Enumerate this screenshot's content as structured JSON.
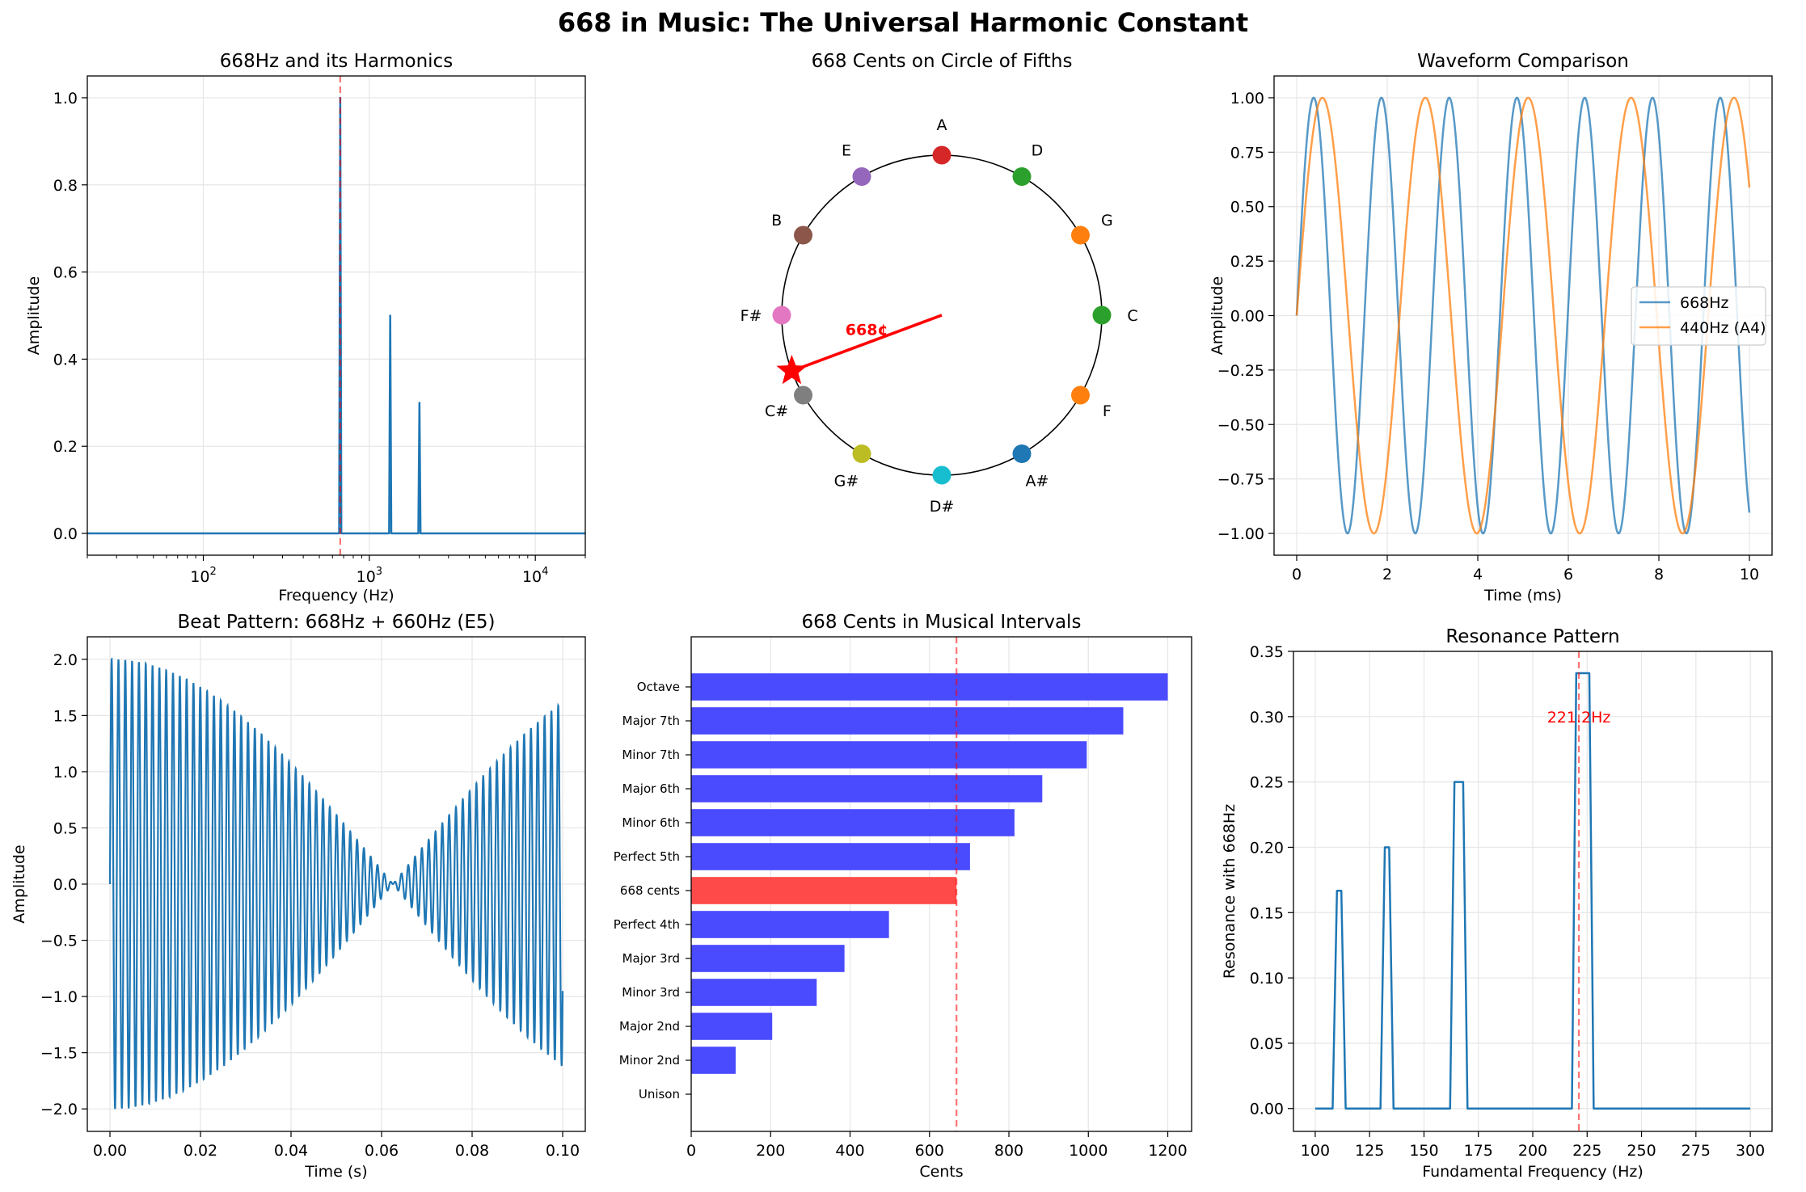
{
  "figure": {
    "suptitle": "668 in Music: The Universal Harmonic Constant"
  },
  "chart_data": [
    {
      "id": "harmonics",
      "type": "line",
      "title": "668Hz and its Harmonics",
      "xlabel": "Frequency (Hz)",
      "ylabel": "Amplitude",
      "xscale": "log",
      "xlim": [
        20,
        20000
      ],
      "ylim": [
        -0.05,
        1.05
      ],
      "xticks": [
        {
          "v": 100,
          "base": "10",
          "exp": "2"
        },
        {
          "v": 1000,
          "base": "10",
          "exp": "3"
        },
        {
          "v": 10000,
          "base": "10",
          "exp": "4"
        }
      ],
      "yticks": [
        0.0,
        0.2,
        0.4,
        0.6,
        0.8,
        1.0
      ],
      "ytick_labels": [
        "0.0",
        "0.2",
        "0.4",
        "0.6",
        "0.8",
        "1.0"
      ],
      "peaks": [
        {
          "freq": 668,
          "amp": 1.0
        },
        {
          "freq": 1336,
          "amp": 0.5
        },
        {
          "freq": 2004,
          "amp": 0.3
        }
      ],
      "vline": 668,
      "grid": true
    },
    {
      "id": "circle",
      "type": "polar-diagram",
      "title": "668 Cents on Circle of Fifths",
      "notes": [
        {
          "name": "C",
          "angle_deg": 0,
          "color": "#2ca02c"
        },
        {
          "name": "G",
          "angle_deg": 30,
          "color": "#ff7f0e"
        },
        {
          "name": "D",
          "angle_deg": 60,
          "color": "#2ca02c"
        },
        {
          "name": "A",
          "angle_deg": 90,
          "color": "#d62728"
        },
        {
          "name": "E",
          "angle_deg": 120,
          "color": "#9467bd"
        },
        {
          "name": "B",
          "angle_deg": 150,
          "color": "#8c564b"
        },
        {
          "name": "F#",
          "angle_deg": 180,
          "color": "#e377c2"
        },
        {
          "name": "C#",
          "angle_deg": 210,
          "color": "#7f7f7f"
        },
        {
          "name": "G#",
          "angle_deg": 240,
          "color": "#bcbd22"
        },
        {
          "name": "D#",
          "angle_deg": 270,
          "color": "#17becf"
        },
        {
          "name": "A#",
          "angle_deg": 300,
          "color": "#1f77b4"
        },
        {
          "name": "F",
          "angle_deg": 330,
          "color": "#ff7f0e"
        }
      ],
      "pointer_angle_deg": 200.4,
      "pointer_label": "668¢",
      "pointer_color": "#ff0000"
    },
    {
      "id": "waveform",
      "type": "line",
      "title": "Waveform Comparison",
      "xlabel": "Time (ms)",
      "ylabel": "Amplitude",
      "xlim": [
        -0.5,
        10.5
      ],
      "ylim": [
        -1.1,
        1.1
      ],
      "xticks": [
        0,
        2,
        4,
        6,
        8,
        10
      ],
      "yticks": [
        -1.0,
        -0.75,
        -0.5,
        -0.25,
        0.0,
        0.25,
        0.5,
        0.75,
        1.0
      ],
      "ytick_labels": [
        "−1.00",
        "−0.75",
        "−0.50",
        "−0.25",
        "0.00",
        "0.25",
        "0.50",
        "0.75",
        "1.00"
      ],
      "series": [
        {
          "name": "668Hz",
          "freq_hz": 668,
          "color": "#1f77b4"
        },
        {
          "name": "440Hz (A4)",
          "freq_hz": 440,
          "color": "#ff7f0e"
        }
      ],
      "x_range": [
        0,
        10
      ],
      "legend": "center-right",
      "grid": true
    },
    {
      "id": "beat",
      "type": "line",
      "title": "Beat Pattern: 668Hz + 660Hz (E5)",
      "xlabel": "Time (s)",
      "ylabel": "Amplitude",
      "xlim": [
        -0.005,
        0.105
      ],
      "ylim": [
        -2.2,
        2.2
      ],
      "xticks": [
        0.0,
        0.02,
        0.04,
        0.06,
        0.08,
        0.1
      ],
      "xtick_labels": [
        "0.00",
        "0.02",
        "0.04",
        "0.06",
        "0.08",
        "0.10"
      ],
      "yticks": [
        -2.0,
        -1.5,
        -1.0,
        -0.5,
        0.0,
        0.5,
        1.0,
        1.5,
        2.0
      ],
      "ytick_labels": [
        "−2.0",
        "−1.5",
        "−1.0",
        "−0.5",
        "0.0",
        "0.5",
        "1.0",
        "1.5",
        "2.0"
      ],
      "series": [
        {
          "freqs_hz": [
            668,
            660
          ]
        }
      ],
      "x_range": [
        0,
        0.1
      ],
      "grid": true
    },
    {
      "id": "intervals",
      "type": "bar",
      "orientation": "horizontal",
      "title": "668 Cents in Musical Intervals",
      "xlabel": "Cents",
      "xlim": [
        0,
        1260
      ],
      "xticks": [
        0,
        200,
        400,
        600,
        800,
        1000,
        1200
      ],
      "categories": [
        "Unison",
        "Minor 2nd",
        "Major 2nd",
        "Minor 3rd",
        "Major 3rd",
        "Perfect 4th",
        "668 cents",
        "Perfect 5th",
        "Minor 6th",
        "Major 6th",
        "Minor 7th",
        "Major 7th",
        "Octave"
      ],
      "values": [
        0,
        112,
        204,
        316,
        386,
        498,
        668,
        702,
        814,
        884,
        996,
        1088,
        1200
      ],
      "colors": {
        "default": "#4a4aff",
        "highlight": "#ff4a4a"
      },
      "highlight": "668 cents",
      "vline": 668,
      "grid": true
    },
    {
      "id": "resonance",
      "type": "line",
      "title": "Resonance Pattern",
      "xlabel": "Fundamental Frequency (Hz)",
      "ylabel": "Resonance with 668Hz",
      "xlim": [
        90,
        310
      ],
      "ylim": [
        -0.0175,
        0.35
      ],
      "xticks": [
        100,
        125,
        150,
        175,
        200,
        225,
        250,
        275,
        300
      ],
      "yticks": [
        0.0,
        0.05,
        0.1,
        0.15,
        0.2,
        0.25,
        0.3,
        0.35
      ],
      "ytick_labels": [
        "0.00",
        "0.05",
        "0.10",
        "0.15",
        "0.20",
        "0.25",
        "0.30",
        "0.35"
      ],
      "x": [
        100,
        108,
        110,
        112,
        114,
        130,
        132,
        134,
        136,
        162,
        164,
        168,
        170,
        218,
        220,
        226,
        228,
        300
      ],
      "y": [
        0,
        0,
        0.1667,
        0.1667,
        0,
        0,
        0.2,
        0.2,
        0,
        0,
        0.25,
        0.25,
        0,
        0,
        0.3333,
        0.3333,
        0,
        0
      ],
      "vline": 221.2,
      "annotation": {
        "text": "221.2Hz",
        "x": 221.2,
        "y": 0.3
      },
      "grid": true
    }
  ]
}
